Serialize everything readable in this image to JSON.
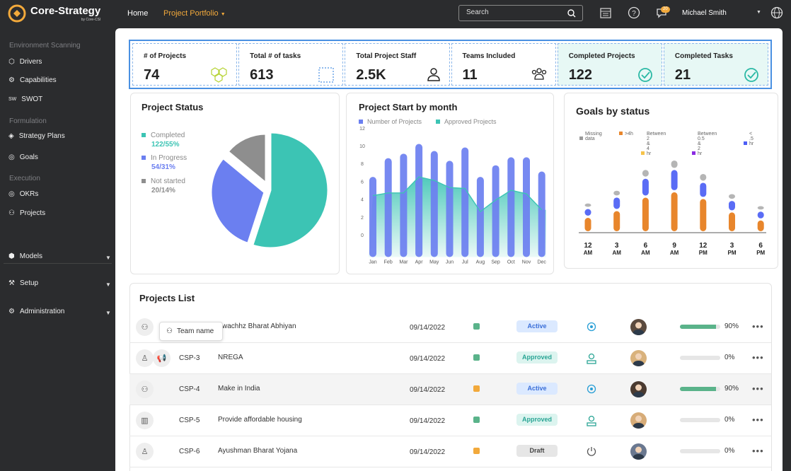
{
  "app": {
    "name": "Core-Strategy",
    "sub": "by Core-CSI"
  },
  "topnav": {
    "home": "Home",
    "portfolio": "Project Portfolio",
    "search_placeholder": "Search",
    "notif_count": "20",
    "user": "Michael Smith"
  },
  "sidebar": {
    "sec_env": "Environment Scanning",
    "drivers": "Drivers",
    "capabilities": "Capabilities",
    "swot": "SWOT",
    "sec_form": "Formulation",
    "strategy": "Strategy Plans",
    "goals": "Goals",
    "sec_exec": "Execution",
    "okrs": "OKRs",
    "projects": "Projects",
    "models": "Models",
    "setup": "Setup",
    "admin": "Administration"
  },
  "kpis": [
    {
      "label": "# of Projects",
      "value": "74"
    },
    {
      "label": "Total # of tasks",
      "value": "613"
    },
    {
      "label": "Total Project Staff",
      "value": "2.5K"
    },
    {
      "label": "Teams Included",
      "value": "11"
    },
    {
      "label": "Completed Projects",
      "value": "122"
    },
    {
      "label": "Completed Tasks",
      "value": "21"
    }
  ],
  "project_status": {
    "title": "Project Status",
    "items": [
      {
        "label": "Completed",
        "value": "122/55%"
      },
      {
        "label": "In Progress",
        "value": "54/31%"
      },
      {
        "label": "Not started",
        "value": "20/14%"
      }
    ]
  },
  "colors": {
    "teal": "#3cc4b4",
    "blue": "#6b7ff0",
    "gray": "#8e8e8e",
    "orange": "#e8862c",
    "green": "#5ab38a"
  },
  "chart_data": [
    {
      "type": "pie",
      "title": "Project Status",
      "categories": [
        "Completed",
        "In Progress",
        "Not started"
      ],
      "values": [
        55,
        31,
        14
      ]
    },
    {
      "type": "bar",
      "title": "Project Start by month",
      "legend": [
        "Number of Projects",
        "Approved Projects"
      ],
      "categories": [
        "Jan",
        "Feb",
        "Mar",
        "Apr",
        "May",
        "Jun",
        "Jul",
        "Aug",
        "Sep",
        "Oct",
        "Nov",
        "Dec"
      ],
      "y_ticks": [
        "12",
        "10",
        "8",
        "6",
        "4",
        "2",
        "0"
      ],
      "series": [
        {
          "name": "Number of Projects",
          "values": [
            6.5,
            8.6,
            9.1,
            10.2,
            9.4,
            8.3,
            9.8,
            6.5,
            7.8,
            8.7,
            8.7,
            7.1
          ]
        },
        {
          "name": "Approved Projects",
          "values": [
            4.4,
            4.7,
            4.7,
            6.5,
            6.1,
            5.3,
            5.2,
            2.6,
            3.9,
            5.0,
            4.6,
            2.8
          ]
        }
      ],
      "ylim": [
        -2.5,
        12
      ]
    },
    {
      "type": "bar",
      "title": "Goals by status",
      "legend": [
        "Missing data",
        ">4h",
        "Between 2 & 4 hr",
        "Between 0.5 & 2 hr",
        "< .5 hr"
      ],
      "categories": [
        [
          "12",
          "AM"
        ],
        [
          "3",
          "AM"
        ],
        [
          "6",
          "AM"
        ],
        [
          "9",
          "AM"
        ],
        [
          "12",
          "PM"
        ],
        [
          "3",
          "PM"
        ],
        [
          "6",
          "PM"
        ]
      ],
      "series": [
        {
          "name": ">4h",
          "values": [
            20,
            30,
            50,
            58,
            48,
            28,
            16
          ]
        },
        {
          "name": "< .5 hr",
          "values": [
            10,
            17,
            25,
            30,
            21,
            14,
            10
          ]
        },
        {
          "name": "Missing data",
          "values": [
            5,
            7,
            10,
            11,
            10,
            7,
            5
          ]
        }
      ]
    }
  ],
  "projects_list": {
    "title": "Projects List",
    "tooltip": "Team name",
    "rows": [
      {
        "id": "",
        "name": "wachhz Bharat Abhiyan",
        "date": "09/14/2022",
        "status": "Active",
        "pct": "90%",
        "fill": 0.9
      },
      {
        "id": "CSP-3",
        "name": "NREGA",
        "date": "09/14/2022",
        "status": "Approved",
        "pct": "0%",
        "fill": 0
      },
      {
        "id": "CSP-4",
        "name": "Make in India",
        "date": "09/14/2022",
        "status": "Active",
        "pct": "90%",
        "fill": 0.9
      },
      {
        "id": "CSP-5",
        "name": "Provide affordable housing",
        "date": "09/14/2022",
        "status": "Approved",
        "pct": "0%",
        "fill": 0
      },
      {
        "id": "CSP-6",
        "name": "Ayushman Bharat Yojana",
        "date": "09/14/2022",
        "status": "Draft",
        "pct": "0%",
        "fill": 0
      }
    ]
  }
}
